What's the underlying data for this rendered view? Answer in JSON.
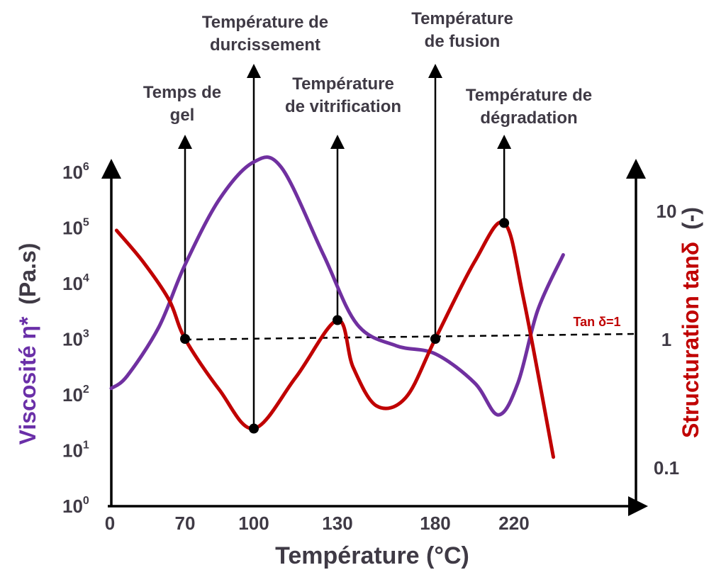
{
  "chart_data": {
    "type": "line",
    "title": "",
    "xlabel": "Température (°C)",
    "ylabel_left": {
      "main": "Viscosité η*",
      "unit": "(Pa.s)",
      "color": "#6a2fa8"
    },
    "ylabel_right": {
      "main": "Structuration tanδ",
      "unit": "(-)",
      "color": "#c00000"
    },
    "x_ticks": [
      "0",
      "70",
      "100",
      "130",
      "180",
      "220"
    ],
    "y_left": {
      "scale": "log",
      "ylim": [
        1,
        1000000
      ],
      "ticks": [
        {
          "base": "10",
          "exp": "0"
        },
        {
          "base": "10",
          "exp": "1"
        },
        {
          "base": "10",
          "exp": "2"
        },
        {
          "base": "10",
          "exp": "3"
        },
        {
          "base": "10",
          "exp": "4"
        },
        {
          "base": "10",
          "exp": "5"
        },
        {
          "base": "10",
          "exp": "6"
        }
      ]
    },
    "y_right": {
      "scale": "log",
      "ticks": [
        "0.1",
        "1",
        "10"
      ]
    },
    "reference_line": {
      "label": "Tan δ=1",
      "y_right": 1,
      "style": "dashed"
    },
    "series": [
      {
        "name": "Viscosité η*",
        "color": "#7030a0",
        "axis": "left",
        "points": [
          {
            "x": 0,
            "y": 120
          },
          {
            "x": 15,
            "y": 200
          },
          {
            "x": 45,
            "y": 1500
          },
          {
            "x": 70,
            "y": 20000
          },
          {
            "x": 85,
            "y": 300000
          },
          {
            "x": 100,
            "y": 1400000
          },
          {
            "x": 110,
            "y": 1100000
          },
          {
            "x": 125,
            "y": 30000
          },
          {
            "x": 140,
            "y": 1700
          },
          {
            "x": 160,
            "y": 700
          },
          {
            "x": 180,
            "y": 500
          },
          {
            "x": 200,
            "y": 150
          },
          {
            "x": 212,
            "y": 40
          },
          {
            "x": 222,
            "y": 150
          },
          {
            "x": 232,
            "y": 3000
          },
          {
            "x": 245,
            "y": 30000
          }
        ]
      },
      {
        "name": "Structuration tanδ",
        "color": "#c00000",
        "axis": "right",
        "points": [
          {
            "x": 5,
            "y": 7
          },
          {
            "x": 30,
            "y": 4
          },
          {
            "x": 55,
            "y": 2
          },
          {
            "x": 70,
            "y": 1
          },
          {
            "x": 85,
            "y": 0.4
          },
          {
            "x": 100,
            "y": 0.2
          },
          {
            "x": 115,
            "y": 0.5
          },
          {
            "x": 130,
            "y": 1.4
          },
          {
            "x": 138,
            "y": 0.6
          },
          {
            "x": 150,
            "y": 0.3
          },
          {
            "x": 165,
            "y": 0.35
          },
          {
            "x": 180,
            "y": 1
          },
          {
            "x": 200,
            "y": 4
          },
          {
            "x": 215,
            "y": 8
          },
          {
            "x": 225,
            "y": 2
          },
          {
            "x": 240,
            "y": 0.12
          }
        ]
      }
    ],
    "markers": [
      {
        "x": 70,
        "y_right": 1,
        "label": [
          "Temps de",
          "gel"
        ]
      },
      {
        "x": 100,
        "y_right": 0.2,
        "label": [
          "Température de",
          "durcissement"
        ]
      },
      {
        "x": 130,
        "y_right": 1.4,
        "label": [
          "Température",
          "de vitrification"
        ]
      },
      {
        "x": 180,
        "y_right": 1,
        "label": [
          "Température",
          "de fusion"
        ]
      },
      {
        "x": 215,
        "y_right": 8,
        "label": [
          "Température de",
          "dégradation"
        ]
      }
    ],
    "grid": false,
    "legend": "none"
  }
}
